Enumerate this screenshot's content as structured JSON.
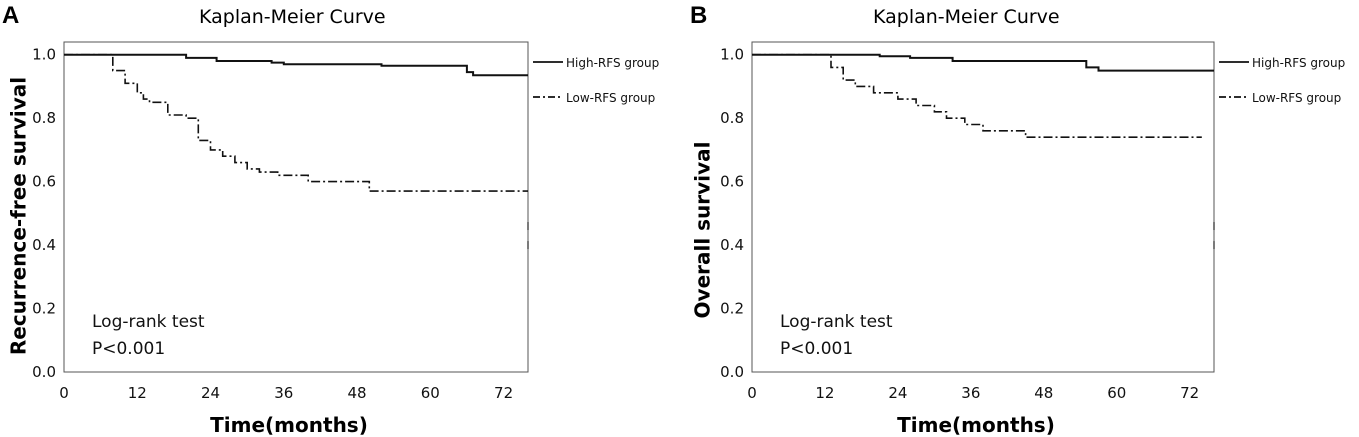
{
  "chart_data": [
    {
      "panel_label": "A",
      "type": "line",
      "title": "Kaplan-Meier Curve",
      "xlabel": "Time(months)",
      "ylabel": "Recurrence-free survival",
      "xlim": [
        0,
        76
      ],
      "ylim": [
        0,
        1.04
      ],
      "xticks": [
        0,
        12,
        24,
        36,
        48,
        60,
        72
      ],
      "xtick_labels": [
        "0",
        "12",
        "24",
        "36",
        "48",
        "60",
        "72"
      ],
      "yticks": [
        0.0,
        0.2,
        0.4,
        0.6,
        0.8,
        1.0
      ],
      "ytick_labels": [
        "0.0",
        "0.2",
        "0.4",
        "0.6",
        "0.8",
        "1.0"
      ],
      "grid": false,
      "legend_position": "right, outside plot",
      "annotation": [
        "Log-rank test",
        "P<0.001"
      ],
      "series": [
        {
          "name": "High-RFS group",
          "style": "solid",
          "x": [
            0,
            11,
            20,
            20,
            25,
            25,
            34,
            34,
            36,
            36,
            52,
            52,
            66,
            66,
            67,
            67,
            76
          ],
          "y": [
            1.0,
            1.0,
            1.0,
            0.99,
            0.99,
            0.98,
            0.98,
            0.975,
            0.975,
            0.97,
            0.97,
            0.965,
            0.965,
            0.945,
            0.945,
            0.935,
            0.935
          ]
        },
        {
          "name": "Low-RFS group",
          "style": "dash-dot",
          "x": [
            0,
            8,
            8,
            10,
            10,
            12,
            12,
            13,
            13,
            14,
            14,
            17,
            17,
            20,
            20,
            22,
            22,
            24,
            24,
            26,
            26,
            28,
            28,
            30,
            30,
            32,
            32,
            35,
            35,
            40,
            40,
            50,
            50,
            76
          ],
          "y": [
            1.0,
            1.0,
            0.95,
            0.95,
            0.91,
            0.91,
            0.88,
            0.88,
            0.86,
            0.86,
            0.85,
            0.85,
            0.81,
            0.81,
            0.8,
            0.8,
            0.73,
            0.73,
            0.7,
            0.7,
            0.68,
            0.68,
            0.66,
            0.66,
            0.64,
            0.64,
            0.63,
            0.63,
            0.62,
            0.62,
            0.6,
            0.6,
            0.57,
            0.57
          ]
        }
      ]
    },
    {
      "panel_label": "B",
      "type": "line",
      "title": "Kaplan-Meier Curve",
      "xlabel": "Time(months)",
      "ylabel": "Overall survival",
      "xlim": [
        0,
        76
      ],
      "ylim": [
        0,
        1.04
      ],
      "xticks": [
        0,
        12,
        24,
        36,
        48,
        60,
        72
      ],
      "xtick_labels": [
        "0",
        "12",
        "24",
        "36",
        "48",
        "60",
        "72"
      ],
      "yticks": [
        0.0,
        0.2,
        0.4,
        0.6,
        0.8,
        1.0
      ],
      "ytick_labels": [
        "0.0",
        "0.2",
        "0.4",
        "0.6",
        "0.8",
        "1.0"
      ],
      "grid": false,
      "legend_position": "right, outside plot",
      "annotation": [
        "Log-rank test",
        "P<0.001"
      ],
      "series": [
        {
          "name": "High-RFS group",
          "style": "solid",
          "x": [
            0,
            21,
            21,
            26,
            26,
            33,
            33,
            55,
            55,
            57,
            57,
            76
          ],
          "y": [
            1.0,
            1.0,
            0.995,
            0.995,
            0.99,
            0.99,
            0.98,
            0.98,
            0.96,
            0.96,
            0.95,
            0.95
          ]
        },
        {
          "name": "Low-RFS group",
          "style": "dash-dot",
          "x": [
            0,
            13,
            13,
            15,
            15,
            17,
            17,
            20,
            20,
            24,
            24,
            27,
            27,
            30,
            30,
            32,
            32,
            35,
            35,
            38,
            38,
            45,
            45,
            74
          ],
          "y": [
            1.0,
            1.0,
            0.96,
            0.96,
            0.92,
            0.92,
            0.9,
            0.9,
            0.88,
            0.88,
            0.86,
            0.86,
            0.84,
            0.84,
            0.82,
            0.82,
            0.8,
            0.8,
            0.78,
            0.78,
            0.76,
            0.76,
            0.74,
            0.74
          ]
        }
      ]
    }
  ]
}
